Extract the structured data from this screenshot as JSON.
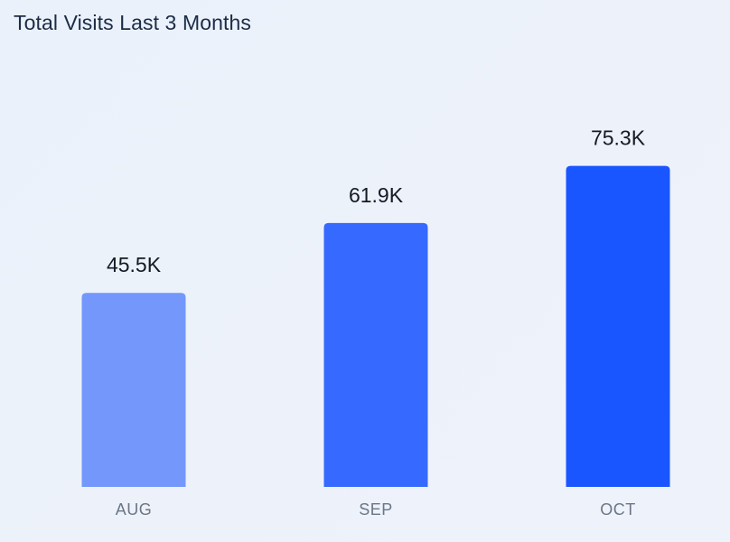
{
  "chart_data": {
    "type": "bar",
    "title": "Total Visits Last 3 Months",
    "categories": [
      "AUG",
      "SEP",
      "OCT"
    ],
    "values": [
      45.5,
      61.9,
      75.3
    ],
    "value_labels": [
      "45.5K",
      "61.9K",
      "75.3K"
    ],
    "unit": "K",
    "xlabel": "",
    "ylabel": "",
    "ylim": [
      0,
      100
    ],
    "grid": false,
    "legend": "none",
    "bar_colors": [
      "#7397fb",
      "#3569ff",
      "#1a56ff"
    ]
  }
}
